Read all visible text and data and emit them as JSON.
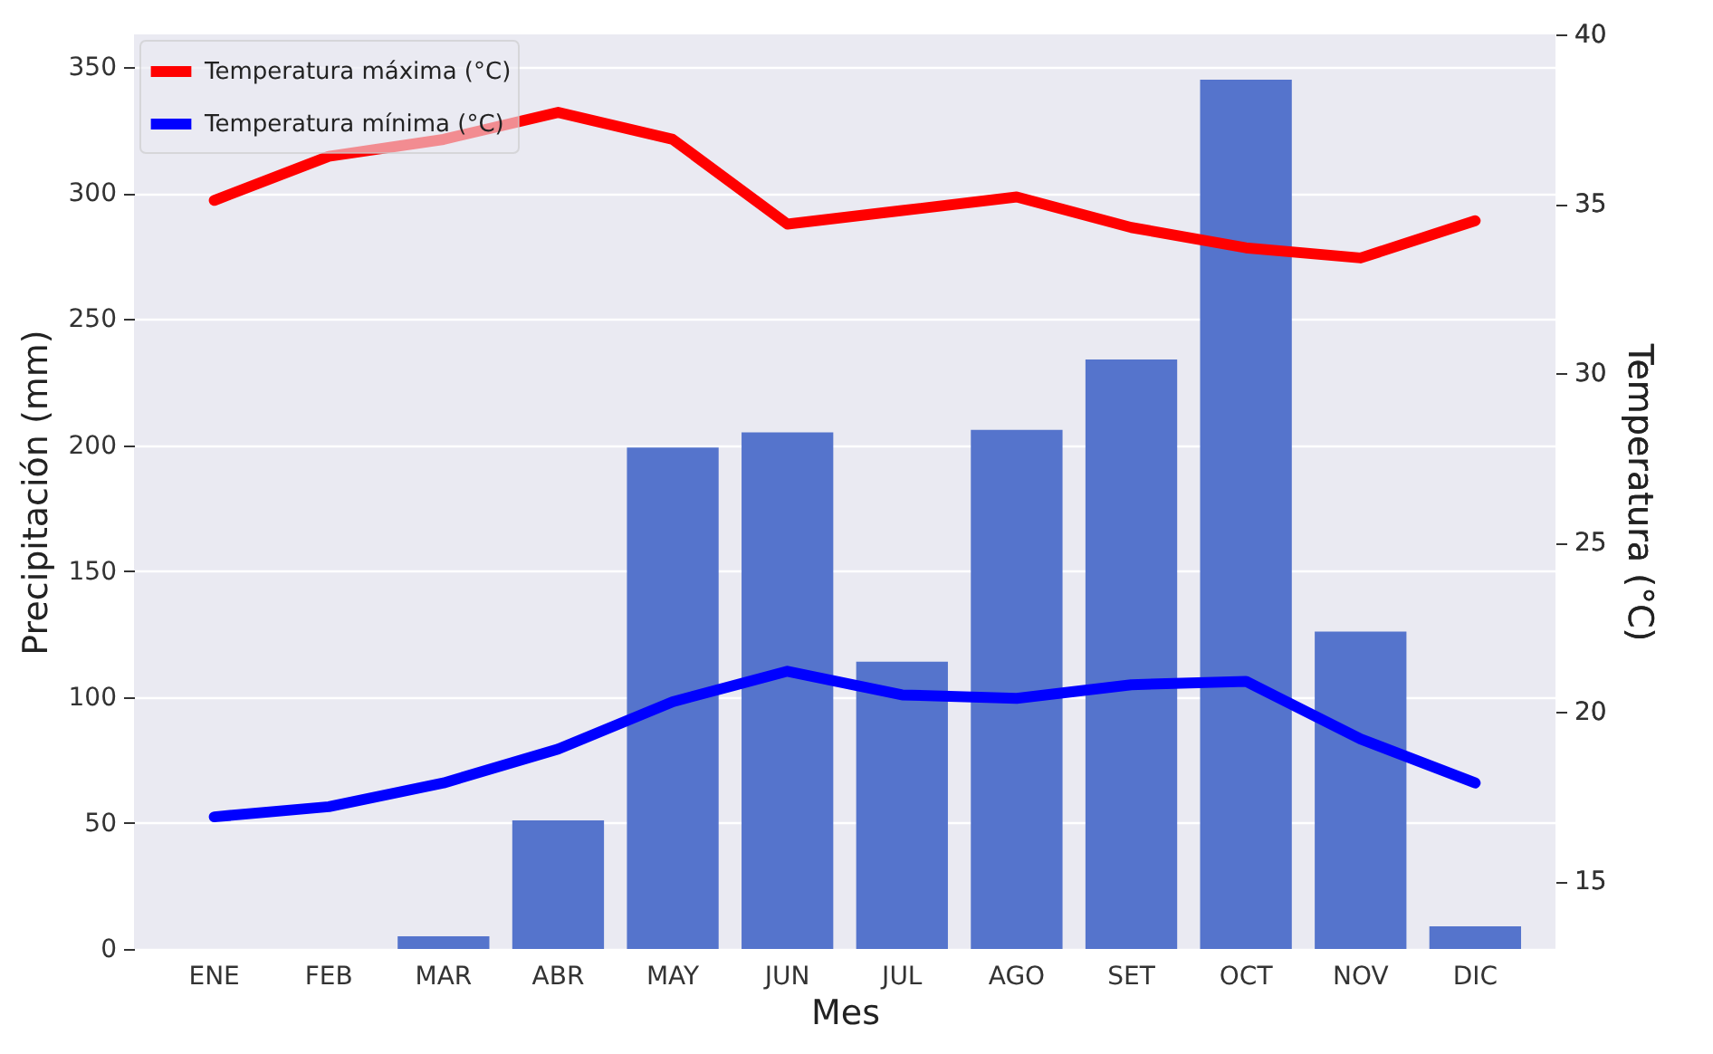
{
  "chart_data": {
    "type": "bar",
    "xlabel": "Mes",
    "ylabel": "Precipitación (mm)",
    "y2label": "Temperatura (°C)",
    "categories": [
      "ENE",
      "FEB",
      "MAR",
      "ABR",
      "MAY",
      "JUN",
      "JUL",
      "AGO",
      "SET",
      "OCT",
      "NOV",
      "DIC"
    ],
    "ylim": [
      0,
      363
    ],
    "yticks": [
      0,
      50,
      100,
      150,
      200,
      250,
      300,
      350
    ],
    "y2lim": [
      13,
      40
    ],
    "y2ticks": [
      15,
      20,
      25,
      30,
      35,
      40
    ],
    "grid": "y",
    "legend": "top left",
    "series": [
      {
        "color": "#5574cc",
        "values": [
          0,
          0,
          5,
          51,
          199,
          205,
          114,
          206,
          234,
          345,
          126,
          9
        ]
      },
      {
        "type": "line",
        "axis": "y2",
        "name": "Temperatura máxima (°C)",
        "color": "#ff0000",
        "values": [
          35.1,
          36.4,
          36.9,
          37.7,
          36.9,
          34.4,
          34.8,
          35.2,
          34.3,
          33.7,
          33.4,
          34.5
        ]
      },
      {
        "type": "line",
        "axis": "y2",
        "name": "Temperatura mínima (°C)",
        "color": "#0000ff",
        "values": [
          16.9,
          17.2,
          17.9,
          18.9,
          20.3,
          21.2,
          20.5,
          20.4,
          20.8,
          20.9,
          19.2,
          17.9
        ]
      }
    ]
  }
}
